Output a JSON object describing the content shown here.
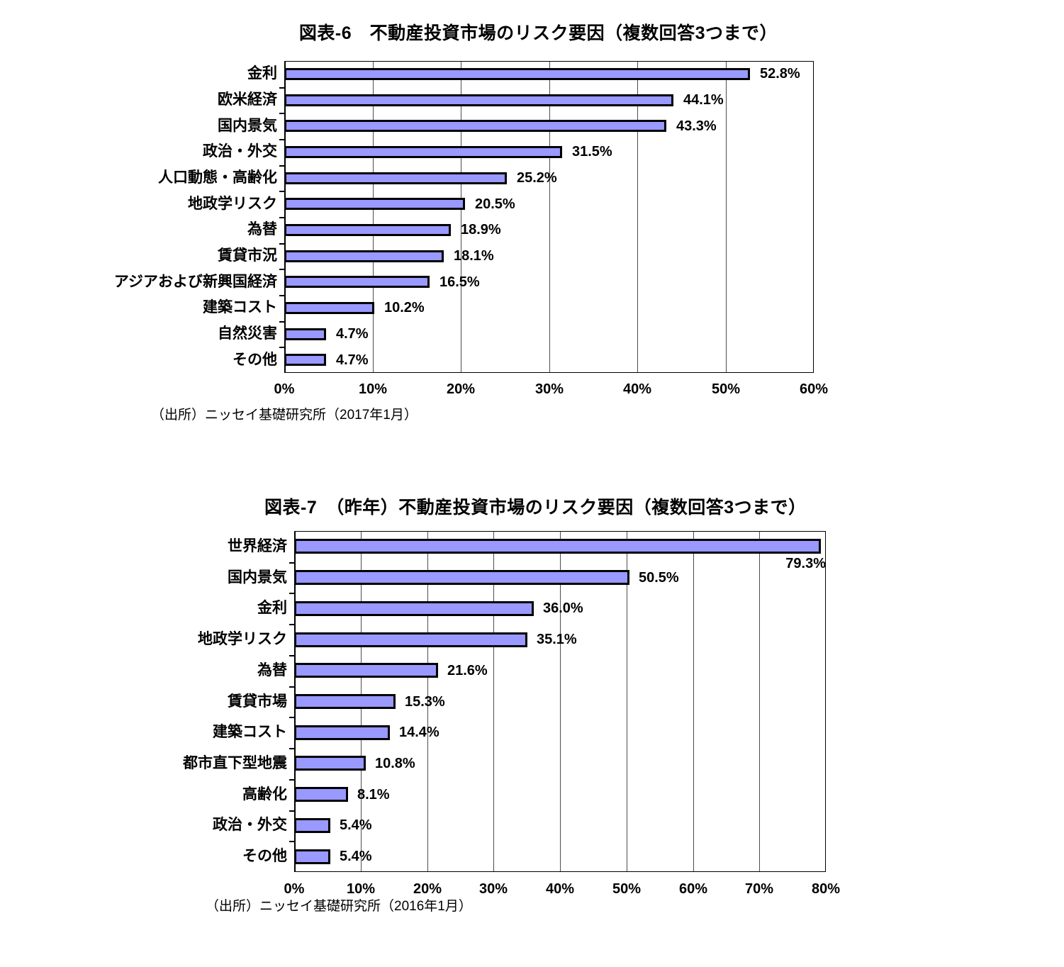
{
  "colors": {
    "bar_fill": "#9999FF",
    "bar_border": "#000000",
    "gridline": "#4d4d4d",
    "text": "#000000",
    "background": "#FFFFFF"
  },
  "chart_data": [
    {
      "type": "bar",
      "orientation": "horizontal",
      "title": "図表-6　不動産投資市場のリスク要因（複数回答3つまで）",
      "categories": [
        "金利",
        "欧米経済",
        "国内景気",
        "政治・外交",
        "人口動態・高齢化",
        "地政学リスク",
        "為替",
        "賃貸市況",
        "アジアおよび新興国経済",
        "建築コスト",
        "自然災害",
        "その他"
      ],
      "values": [
        52.8,
        44.1,
        43.3,
        31.5,
        25.2,
        20.5,
        18.9,
        18.1,
        16.5,
        10.2,
        4.7,
        4.7
      ],
      "value_labels": [
        "52.8%",
        "44.1%",
        "43.3%",
        "31.5%",
        "25.2%",
        "20.5%",
        "18.9%",
        "18.1%",
        "16.5%",
        "10.2%",
        "4.7%",
        "4.7%"
      ],
      "xlim": [
        0,
        60
      ],
      "x_tick_labels": [
        "0%",
        "10%",
        "20%",
        "30%",
        "40%",
        "50%",
        "60%"
      ],
      "grid": "vertical",
      "legend": "none",
      "source": "（出所）ニッセイ基礎研究所（2017年1月）"
    },
    {
      "type": "bar",
      "orientation": "horizontal",
      "title": "図表-7　（昨年）不動産投資市場のリスク要因（複数回答3つまで）",
      "categories": [
        "世界経済",
        "国内景気",
        "金利",
        "地政学リスク",
        "為替",
        "賃貸市場",
        "建築コスト",
        "都市直下型地震",
        "高齢化",
        "政治・外交",
        "その他"
      ],
      "values": [
        79.3,
        50.5,
        36.0,
        35.1,
        21.6,
        15.3,
        14.4,
        10.8,
        8.1,
        5.4,
        5.4
      ],
      "value_labels": [
        "79.3%",
        "50.5%",
        "36.0%",
        "35.1%",
        "21.6%",
        "15.3%",
        "14.4%",
        "10.8%",
        "8.1%",
        "5.4%",
        "5.4%"
      ],
      "xlim": [
        0,
        80
      ],
      "x_tick_labels": [
        "0%",
        "10%",
        "20%",
        "30%",
        "40%",
        "50%",
        "60%",
        "70%",
        "80%"
      ],
      "grid": "vertical",
      "legend": "none",
      "source": "（出所）ニッセイ基礎研究所（2016年1月）"
    }
  ]
}
